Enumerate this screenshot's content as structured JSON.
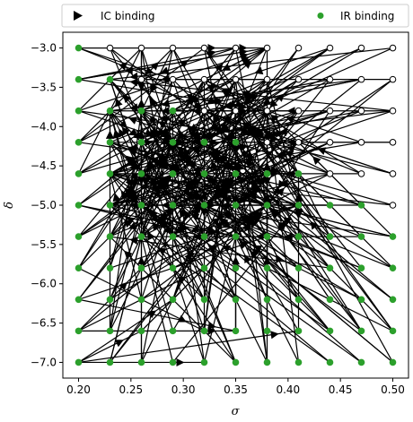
{
  "chart_data": {
    "type": "scatter",
    "xlabel": "σ",
    "ylabel": "δ",
    "xlim": [
      0.185,
      0.515
    ],
    "ylim": [
      -7.2,
      -2.8
    ],
    "xticks": [
      0.2,
      0.25,
      0.3,
      0.35,
      0.4,
      0.45,
      0.5
    ],
    "xtick_labels": [
      "0.20",
      "0.25",
      "0.30",
      "0.35",
      "0.40",
      "0.45",
      "0.50"
    ],
    "yticks": [
      -3.0,
      -3.5,
      -4.0,
      -4.5,
      -5.0,
      -5.5,
      -6.0,
      -6.5,
      -7.0
    ],
    "ytick_labels": [
      "−3.0",
      "−3.5",
      "−4.0",
      "−4.5",
      "−5.0",
      "−5.5",
      "−6.0",
      "−6.5",
      "−7.0"
    ],
    "grid": false,
    "legend_position": "top (outside)",
    "sigma_values": [
      0.2,
      0.23,
      0.26,
      0.29,
      0.32,
      0.35,
      0.38,
      0.41,
      0.44,
      0.47,
      0.5
    ],
    "delta_values": [
      -3.0,
      -3.4,
      -3.8,
      -4.2,
      -4.6,
      -5.0,
      -5.4,
      -5.8,
      -6.2,
      -6.6,
      -7.0
    ],
    "series": [
      {
        "name": "IC binding",
        "marker": "triangle-right",
        "color": "#000000"
      },
      {
        "name": "IR binding",
        "marker": "circle",
        "color": "#2ca02c"
      }
    ],
    "open_markers": "upper-right region of grid (unfilled circles)",
    "arrows": "black arrows connecting grid points, pointing mostly toward the lower-left / upper-left"
  }
}
